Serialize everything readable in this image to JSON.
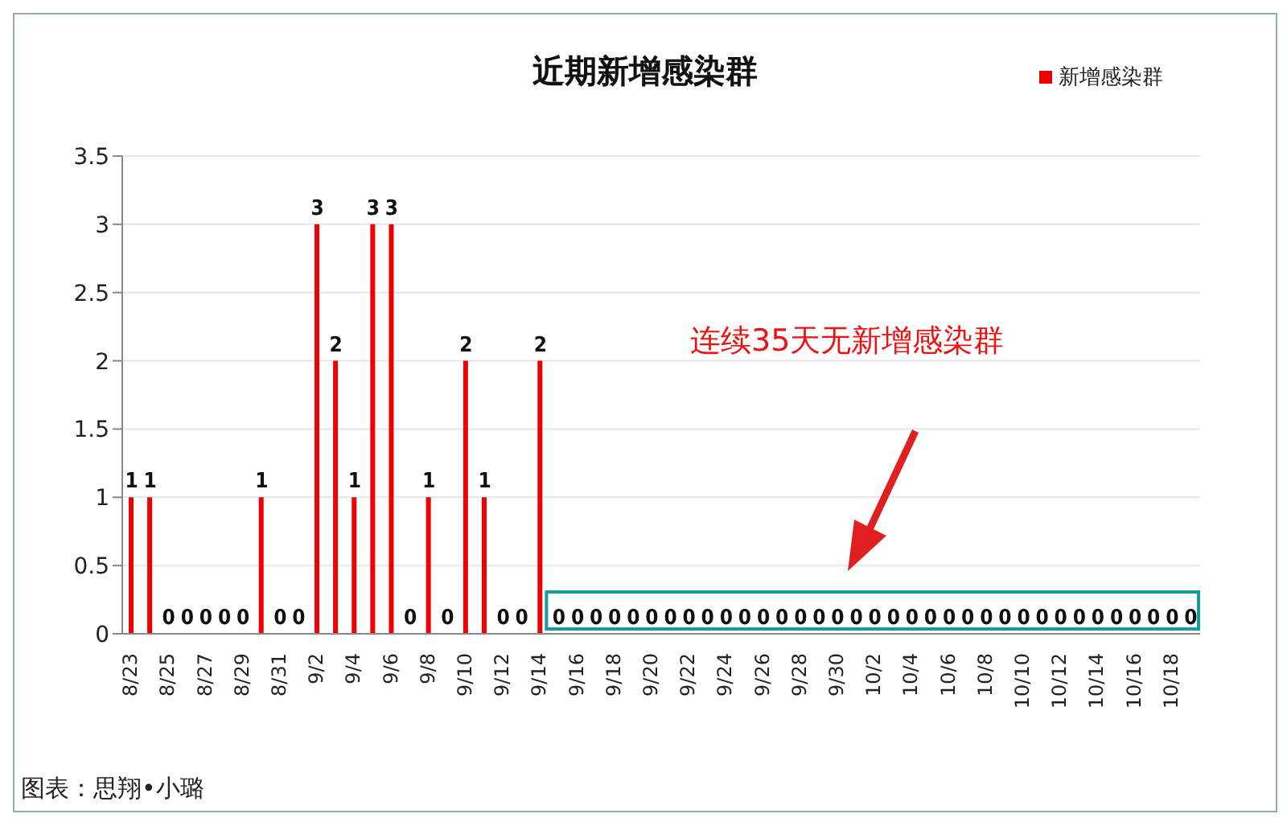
{
  "chart_data": {
    "type": "bar",
    "title": "近期新增感染群",
    "categories": [
      "8/23",
      null,
      "8/25",
      null,
      "8/27",
      null,
      "8/29",
      null,
      "8/31",
      null,
      "9/2",
      null,
      "9/4",
      null,
      "9/6",
      null,
      "9/8",
      null,
      "9/10",
      null,
      "9/12",
      null,
      "9/14",
      null,
      "9/16",
      null,
      "9/18",
      null,
      "9/20",
      null,
      "9/22",
      null,
      "9/24",
      null,
      "9/26",
      null,
      "9/28",
      null,
      "9/30",
      null,
      "10/2",
      null,
      "10/4",
      null,
      "10/6",
      null,
      "10/8",
      null,
      "10/10",
      null,
      "10/12",
      null,
      "10/14",
      null,
      "10/16",
      null,
      "10/18",
      null
    ],
    "series": [
      {
        "name": "新增感染群",
        "color": "#ee0000",
        "values": [
          1,
          1,
          0,
          0,
          0,
          0,
          0,
          1,
          0,
          0,
          3,
          2,
          1,
          3,
          3,
          0,
          1,
          0,
          2,
          1,
          0,
          0,
          2,
          0,
          0,
          0,
          0,
          0,
          0,
          0,
          0,
          0,
          0,
          0,
          0,
          0,
          0,
          0,
          0,
          0,
          0,
          0,
          0,
          0,
          0,
          0,
          0,
          0,
          0,
          0,
          0,
          0,
          0,
          0,
          0,
          0,
          0,
          0
        ]
      }
    ],
    "ylim": [
      0,
      3.5
    ],
    "yticks": [
      0,
      0.5,
      1,
      1.5,
      2,
      2.5,
      3,
      3.5
    ],
    "grid": "y",
    "legend": "top right",
    "data_labels": true,
    "annotations": [
      "连续35天无新增感染群",
      "图表：思翔•小璐"
    ]
  }
}
